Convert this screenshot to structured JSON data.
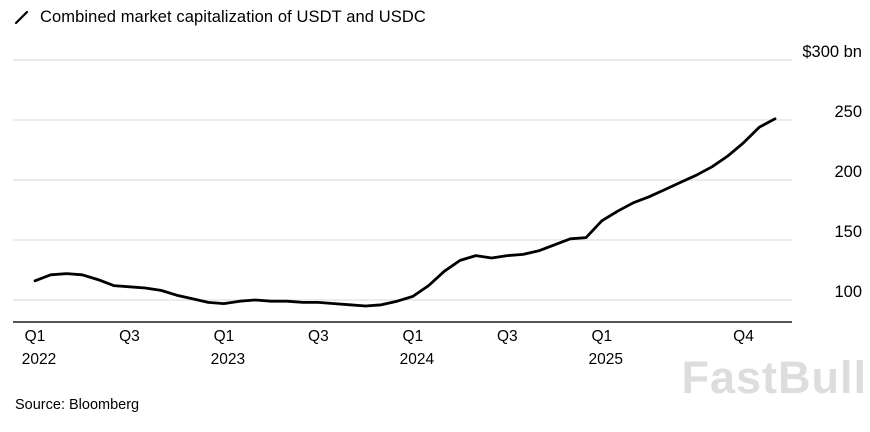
{
  "header": {
    "title": "Combined market capitalization of USDT and USDC"
  },
  "watermark": {
    "text": "FastBull"
  },
  "footer": {
    "source": "Source: Bloomberg"
  },
  "colors": {
    "line": "#000000",
    "grid": "#d8d8d8",
    "baseline": "#1f1f1f",
    "text": "#000000",
    "watermark": "#c8c8c8"
  },
  "chart_data": {
    "type": "line",
    "title": "Combined market capitalization of USDT and USDC",
    "unit": "$ bn",
    "y_axis_side": "right",
    "grid": "horizontal",
    "ylim": [
      82,
      300
    ],
    "x_start": "Jan 2022",
    "x_interval": "month",
    "y_ticks": [
      {
        "value": 300,
        "label": "$300 bn"
      },
      {
        "value": 250,
        "label": "250"
      },
      {
        "value": 200,
        "label": "200"
      },
      {
        "value": 150,
        "label": "150"
      },
      {
        "value": 100,
        "label": "100"
      }
    ],
    "x_ticks": [
      {
        "index": 0,
        "label": "Q1",
        "year": "2022"
      },
      {
        "index": 6,
        "label": "Q3"
      },
      {
        "index": 12,
        "label": "Q1",
        "year": "2023"
      },
      {
        "index": 18,
        "label": "Q3"
      },
      {
        "index": 24,
        "label": "Q1",
        "year": "2024"
      },
      {
        "index": 30,
        "label": "Q3"
      },
      {
        "index": 36,
        "label": "Q1",
        "year": "2025"
      },
      {
        "index": 45,
        "label": "Q4"
      }
    ],
    "values": [
      116,
      121,
      122,
      121,
      117,
      112,
      111,
      110,
      108,
      104,
      101,
      98,
      97,
      99,
      100,
      99,
      99,
      98,
      98,
      97,
      96,
      95,
      96,
      99,
      103,
      112,
      124,
      133,
      137,
      135,
      137,
      138,
      141,
      146,
      151,
      152,
      166,
      174,
      181,
      186,
      192,
      198,
      204,
      211,
      220,
      231,
      244,
      251
    ]
  }
}
